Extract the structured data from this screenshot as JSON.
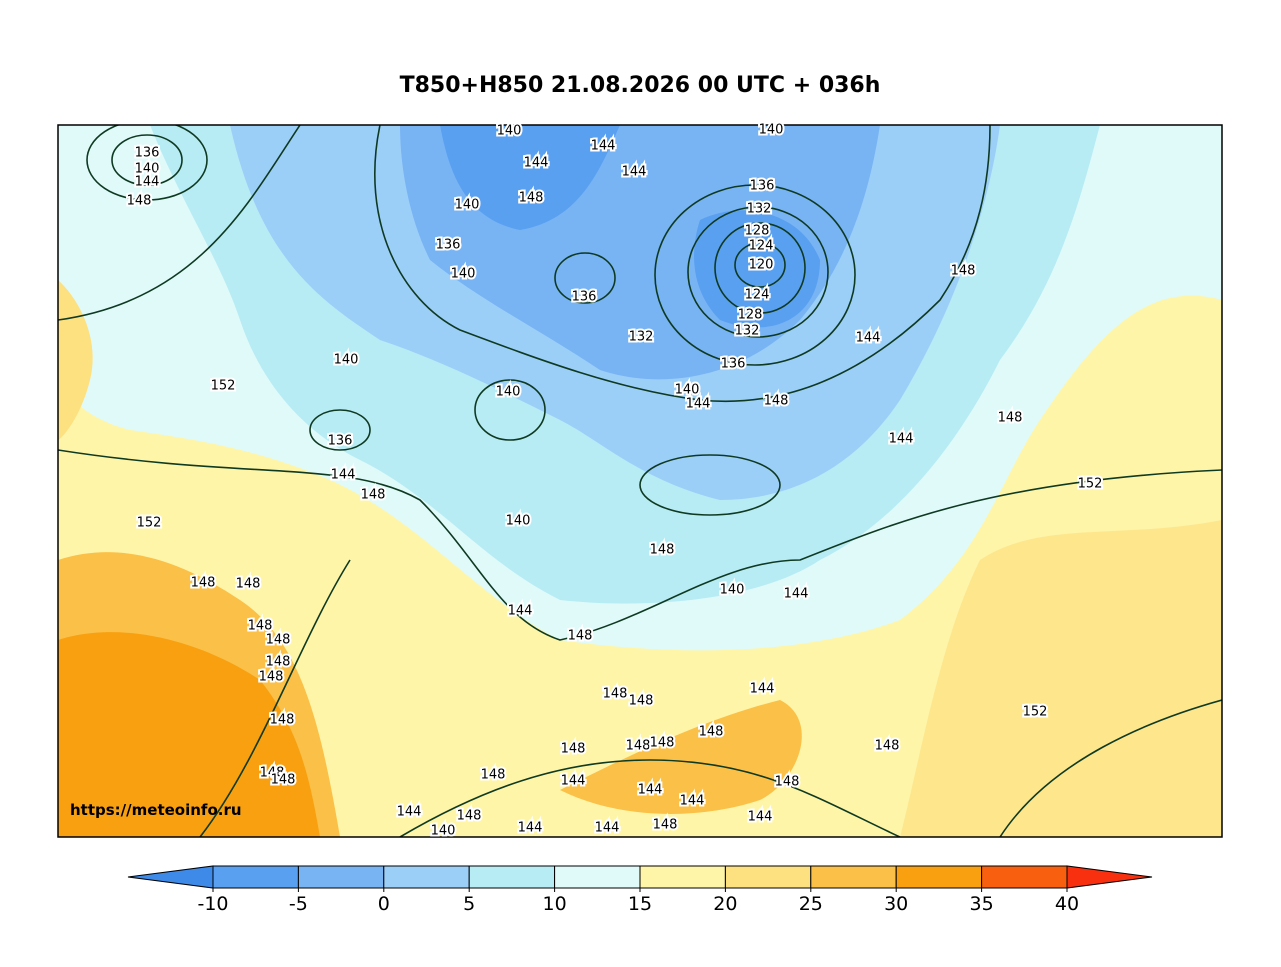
{
  "title": "T850+H850 21.08.2026 00 UTC + 036h",
  "watermark": "https://meteoinfo.ru",
  "colorbar": {
    "ticks": [
      -10,
      -5,
      0,
      5,
      10,
      15,
      20,
      25,
      30,
      35,
      40
    ],
    "under_color": "#3d8ae8",
    "colors": [
      "#5aa0f0",
      "#78b4f4",
      "#9ccff8",
      "#b8ecf4",
      "#e0fafa",
      "#fef5a8",
      "#fde080",
      "#fbc048",
      "#f8a010",
      "#f86010"
    ],
    "over_color": "#f83010"
  },
  "contour_labels": [
    136,
    140,
    144,
    148,
    140,
    144,
    148,
    144,
    144,
    140,
    140,
    136,
    140,
    136,
    136,
    132,
    128,
    124,
    120,
    124,
    128,
    132,
    132,
    136,
    140,
    152,
    140,
    140,
    144,
    148,
    144,
    148,
    144,
    148,
    152,
    136,
    144,
    148,
    152,
    140,
    148,
    144,
    148,
    140,
    144,
    148,
    148,
    148,
    148,
    148,
    148,
    148,
    144,
    152,
    148,
    148,
    148,
    148,
    148,
    148,
    148,
    148,
    144,
    148,
    144,
    144,
    144,
    148,
    144,
    144,
    148,
    140,
    144,
    148,
    148
  ]
}
